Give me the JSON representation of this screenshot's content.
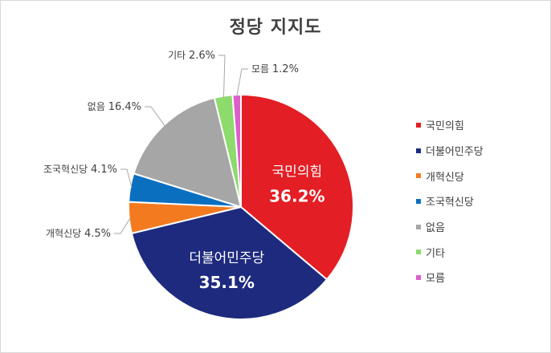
{
  "chart_data": {
    "type": "pie",
    "title": "정당 지지도",
    "categories": [
      "국민의힘",
      "더불어민주당",
      "개혁신당",
      "조국혁신당",
      "없음",
      "기타",
      "모름"
    ],
    "values": [
      36.2,
      35.1,
      4.5,
      4.1,
      16.4,
      2.6,
      1.2
    ],
    "value_labels": [
      "36.2%",
      "35.1%",
      "4.5%",
      "4.1%",
      "16.4%",
      "2.6%",
      "1.2%"
    ],
    "colors": [
      "#e31e24",
      "#1e2a7e",
      "#f47a20",
      "#0b6fc0",
      "#a6a6a6",
      "#8cdb6c",
      "#dd5fc9"
    ],
    "start_angle_deg": 0,
    "direction": "clockwise",
    "legend_position": "right",
    "label_style": {
      "inside": [
        0,
        1
      ],
      "outside": [
        2,
        3,
        4,
        5,
        6
      ]
    }
  }
}
